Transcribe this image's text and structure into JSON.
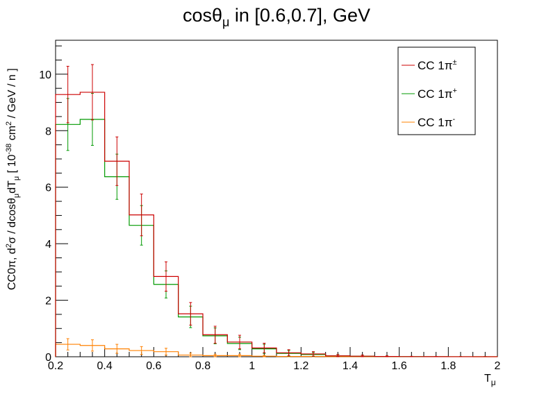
{
  "chart_data": {
    "type": "histogram",
    "title": "cosθ",
    "title_sub": "μ",
    "title_rest": " in [0.6,0.7], GeV",
    "xlabel": "T",
    "xlabel_sub": "μ",
    "ylabel_parts": {
      "a": "CC0π, d",
      "a_sup": "2",
      "b": "σ / dcosθ",
      "b_sub": "μ",
      "c": "dT",
      "c_sub": "μ",
      "d": " [ 10",
      "d_sup": "-38",
      "e": " cm",
      "e_sup": "2",
      "f": " / GeV / n ]"
    },
    "xlim": [
      0.2,
      2.0
    ],
    "ylim": [
      0,
      11.2
    ],
    "x_ticks": [
      "0.2",
      "0.4",
      "0.6",
      "0.8",
      "1",
      "1.2",
      "1.4",
      "1.6",
      "1.8",
      "2"
    ],
    "y_ticks": [
      "0",
      "2",
      "4",
      "6",
      "8",
      "10"
    ],
    "bin_edges": [
      0.2,
      0.3,
      0.4,
      0.5,
      0.6,
      0.7,
      0.8,
      0.9,
      1.0,
      1.1,
      1.2,
      1.3,
      1.4,
      1.5,
      1.6,
      1.7,
      1.8,
      1.9,
      2.0
    ],
    "series": [
      {
        "name": "CC 1π",
        "name_sup": "±",
        "color": "#cc0000",
        "values": [
          9.28,
          9.36,
          6.92,
          5.02,
          2.84,
          1.52,
          0.78,
          0.52,
          0.31,
          0.14,
          0.1,
          0.03,
          0.02,
          0.01,
          0.005,
          0.003,
          0.002,
          0.001
        ],
        "errors": [
          1.0,
          0.98,
          0.86,
          0.74,
          0.52,
          0.4,
          0.3,
          0.24,
          0.17,
          0.11,
          0.08,
          0.05,
          0.04,
          0.02,
          0.01,
          0.01,
          0.005,
          0.005
        ]
      },
      {
        "name": "CC 1π",
        "name_sup": "+",
        "color": "#009900",
        "values": [
          8.22,
          8.4,
          6.37,
          4.65,
          2.56,
          1.41,
          0.74,
          0.47,
          0.28,
          0.12,
          0.08,
          0.03,
          0.02,
          0.01,
          0.005,
          0.003,
          0.002,
          0.001
        ],
        "errors": [
          0.92,
          0.92,
          0.8,
          0.7,
          0.48,
          0.38,
          0.28,
          0.22,
          0.16,
          0.1,
          0.07,
          0.05,
          0.04,
          0.02,
          0.01,
          0.01,
          0.005,
          0.005
        ]
      },
      {
        "name": "CC 1π",
        "name_sup": "-",
        "color": "#ff8000",
        "values": [
          0.44,
          0.4,
          0.28,
          0.22,
          0.18,
          0.06,
          0.04,
          0.04,
          0.02,
          0.01,
          0.01,
          0.005,
          0.004,
          0.003,
          0.002,
          0.001,
          0.001,
          0.0
        ],
        "errors": [
          0.2,
          0.2,
          0.16,
          0.14,
          0.12,
          0.07,
          0.05,
          0.05,
          0.03,
          0.02,
          0.01,
          0.01,
          0.005,
          0.005,
          0.003,
          0.002,
          0.001,
          0.0
        ]
      }
    ],
    "legend_position": "top-right",
    "grid": false
  }
}
